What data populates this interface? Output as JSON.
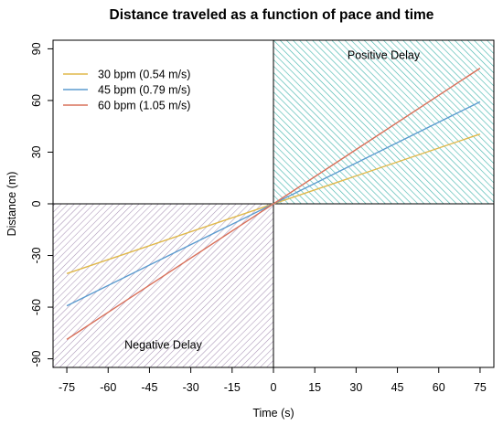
{
  "chart_data": {
    "type": "line",
    "title": "Distance traveled as a function of pace and time",
    "xlabel": "Time (s)",
    "ylabel": "Distance (m)",
    "xlim": [
      -80,
      80
    ],
    "ylim": [
      -95,
      95
    ],
    "xticks": [
      -75,
      -60,
      -45,
      -30,
      -15,
      0,
      15,
      30,
      45,
      60,
      75
    ],
    "yticks": [
      -90,
      -60,
      -30,
      0,
      30,
      60,
      90
    ],
    "x": [
      -75,
      75
    ],
    "series": [
      {
        "name": "30 bpm (0.54 m/s)",
        "color": "#e0b84a",
        "values": [
          -40.5,
          40.5
        ]
      },
      {
        "name": "45 bpm (0.79 m/s)",
        "color": "#5b9bcf",
        "values": [
          -59.25,
          59.25
        ]
      },
      {
        "name": "60 bpm (1.05 m/s)",
        "color": "#d9705a",
        "values": [
          -78.75,
          78.75
        ]
      }
    ],
    "regions": [
      {
        "label": "Positive Delay",
        "x": [
          0,
          80
        ],
        "y": [
          0,
          95
        ],
        "color": "#4cb8b0"
      },
      {
        "label": "Negative Delay",
        "x": [
          -80,
          0
        ],
        "y": [
          -95,
          0
        ],
        "color": "#a893b5"
      }
    ],
    "reference_lines": [
      0
    ],
    "legend_position": "top-left",
    "grid": false
  }
}
